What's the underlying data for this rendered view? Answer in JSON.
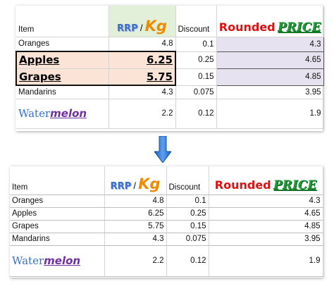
{
  "top_table": {
    "headers": {
      "item": "Item",
      "rrp": "RRP",
      "slash": "/",
      "kg": "Kg",
      "discount": "Discount",
      "rounded": "Rounded",
      "price": "PRICE"
    },
    "rows": [
      {
        "item": "Oranges",
        "rrp": "4.8",
        "discount": "0.1",
        "price": "4.3"
      },
      {
        "item": "Apples",
        "rrp": "6.25",
        "discount": "0.25",
        "price": "4.65"
      },
      {
        "item": "Grapes",
        "rrp": "5.75",
        "discount": "0.15",
        "price": "4.85"
      },
      {
        "item": "Mandarins",
        "rrp": "4.3",
        "discount": "0.075",
        "price": "3.95"
      },
      {
        "item_part1": "Water",
        "item_part2": "melon",
        "rrp": "2.2",
        "discount": "0.12",
        "price": "1.9"
      }
    ]
  },
  "bottom_table": {
    "headers": {
      "item": "Item",
      "rrp": "RRP",
      "slash": "/",
      "kg": "Kg",
      "discount": "Discount",
      "rounded": "Rounded",
      "price": "PRICE"
    },
    "rows": [
      {
        "item": "Oranges",
        "rrp": "4.8",
        "discount": "0.1",
        "price": "4.3"
      },
      {
        "item": "Apples",
        "rrp": "6.25",
        "discount": "0.25",
        "price": "4.65"
      },
      {
        "item": "Grapes",
        "rrp": "5.75",
        "discount": "0.15",
        "price": "4.85"
      },
      {
        "item": "Mandarins",
        "rrp": "4.3",
        "discount": "0.075",
        "price": "3.95"
      },
      {
        "item_part1": "Water",
        "item_part2": "melon",
        "rrp": "2.2",
        "discount": "0.12",
        "price": "1.9"
      }
    ]
  },
  "arrow": {
    "icon": "down-arrow-icon",
    "color": "#2e75d6"
  },
  "colors": {
    "peach_highlight": "#fbe4d5",
    "lavender_highlight": "#e6e2ef",
    "rrp_header_bg": "#e2efd9",
    "price_red": "#c00000"
  }
}
